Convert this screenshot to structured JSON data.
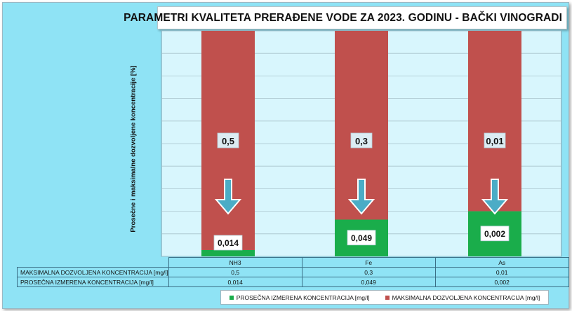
{
  "colors": {
    "max_series": "#c0504d",
    "measured_series": "#1aad4b",
    "plot_bg": "#d8f6fd",
    "frame_bg": "#8fe3f5",
    "arrow": "#4bacc6"
  },
  "chart_data": {
    "type": "bar",
    "stacked": true,
    "title": "PARAMETRI  KVALITETA PRERAĐENE VODE ZA 2023. GODINU - BAČKI VINOGRADI",
    "ylabel": "Prosečne i maksimalne dozvoljene koncentracije [%]",
    "xlabel": "",
    "ylim": [
      0,
      100
    ],
    "grid": true,
    "legend_position": "bottom",
    "categories": [
      "NH3",
      "Fe",
      "As"
    ],
    "series": [
      {
        "name": "PROSEČNA IZMERENA KONCENTRACIJA [mg/l]",
        "values": [
          0.014,
          0.049,
          0.002
        ],
        "labels": [
          "0,014",
          "0,049",
          "0,002"
        ],
        "percent_of_max": [
          2.8,
          16.3,
          20.0
        ]
      },
      {
        "name": "MAKSIMALNA DOZVOLJENA KONCENTRACIJA [mg/l]",
        "values": [
          0.5,
          0.3,
          0.01
        ],
        "labels": [
          "0,5",
          "0,3",
          "0,01"
        ]
      }
    ],
    "table": {
      "rows": [
        {
          "label": "MAKSIMALNA DOZVOLJENA KONCENTRACIJA [mg/l]",
          "values": [
            "0,5",
            "0,3",
            "0,01"
          ]
        },
        {
          "label": "PROSEČNA IZMERENA KONCENTRACIJA [mg/l]",
          "values": [
            "0,014",
            "0,049",
            "0,002"
          ]
        }
      ]
    },
    "annotations": [
      "arrow-down-icon",
      "arrow-down-icon",
      "arrow-down-icon"
    ]
  }
}
